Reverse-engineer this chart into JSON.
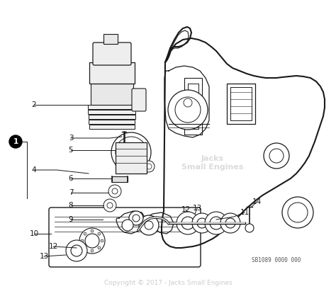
{
  "bg_color": "#ffffff",
  "line_color": "#1a1a1a",
  "label_color": "#1a1a1a",
  "watermark_color": "#cccccc",
  "copyright_text": "Copyright © 2017 - Jacks Small Engines",
  "diagram_id": "SB1089 0000 000",
  "figsize": [
    4.74,
    4.25
  ],
  "dpi": 100
}
